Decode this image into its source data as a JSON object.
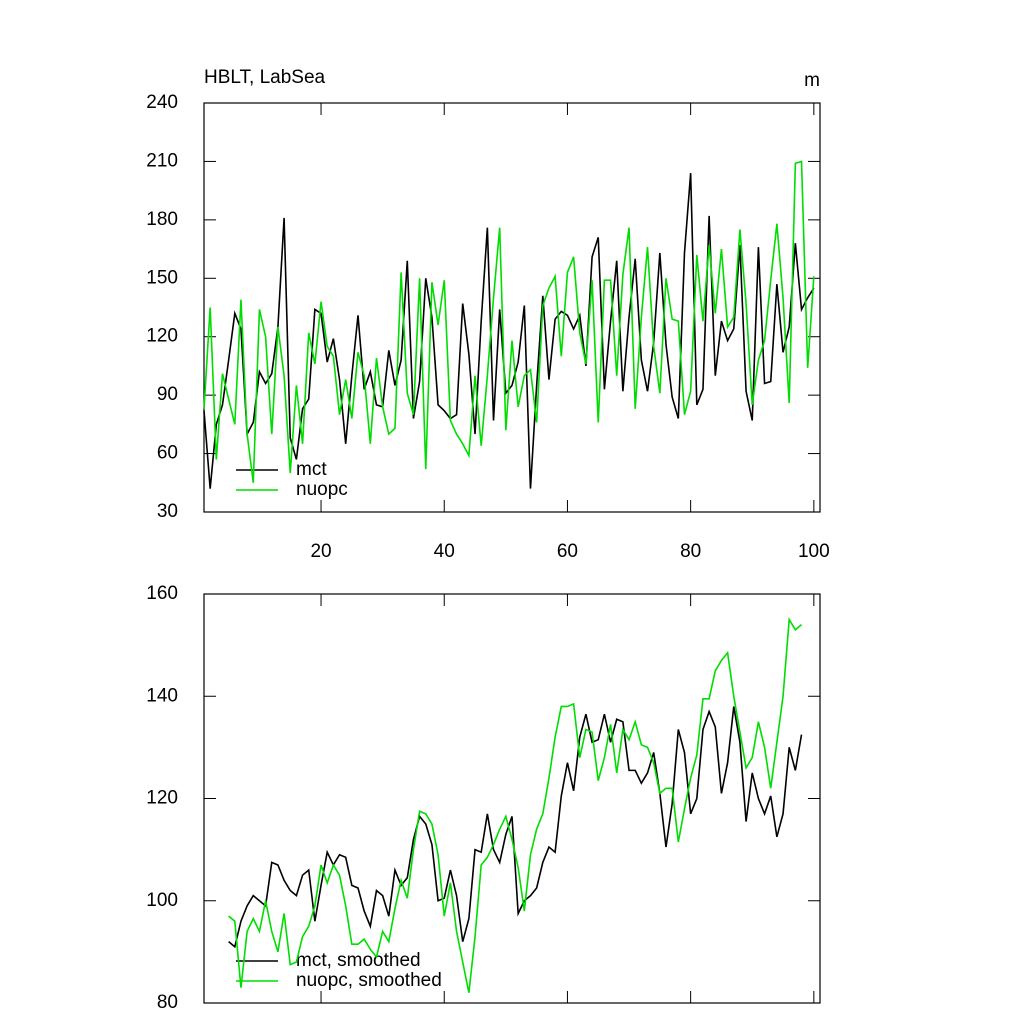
{
  "chart_data": [
    {
      "type": "line",
      "title": "HBLT, LabSea",
      "units": "m",
      "x": [
        1,
        2,
        3,
        4,
        5,
        6,
        7,
        8,
        9,
        10,
        11,
        12,
        13,
        14,
        15,
        16,
        17,
        18,
        19,
        20,
        21,
        22,
        23,
        24,
        25,
        26,
        27,
        28,
        29,
        30,
        31,
        32,
        33,
        34,
        35,
        36,
        37,
        38,
        39,
        40,
        41,
        42,
        43,
        44,
        45,
        46,
        47,
        48,
        49,
        50,
        51,
        52,
        53,
        54,
        55,
        56,
        57,
        58,
        59,
        60,
        61,
        62,
        63,
        64,
        65,
        66,
        67,
        68,
        69,
        70,
        71,
        72,
        73,
        74,
        75,
        76,
        77,
        78,
        79,
        80,
        81,
        82,
        83,
        84,
        85,
        86,
        87,
        88,
        89,
        90,
        91,
        92,
        93,
        94,
        95,
        96,
        97,
        98,
        99,
        100
      ],
      "series": [
        {
          "name": "mct",
          "color": "#000000",
          "values": [
            82,
            42,
            75,
            85,
            108,
            132,
            124,
            70,
            76,
            102,
            96,
            101,
            125,
            181,
            68,
            57,
            83,
            88,
            134,
            132,
            107,
            119,
            98,
            65,
            100,
            131,
            93,
            102,
            85,
            84,
            113,
            95,
            108,
            159,
            78,
            97,
            150,
            130,
            85,
            82,
            78,
            80,
            137,
            111,
            70,
            128,
            176,
            77,
            134,
            91,
            95,
            107,
            136,
            42,
            95,
            141,
            98,
            129,
            133,
            131,
            124,
            131,
            105,
            161,
            171,
            93,
            128,
            159,
            92,
            130,
            160,
            108,
            92,
            117,
            163,
            116,
            89,
            78,
            163,
            204,
            85,
            93,
            182,
            100,
            128,
            118,
            124,
            167,
            92,
            77,
            166,
            96,
            97,
            147,
            112,
            125,
            168,
            134,
            140,
            145
          ]
        },
        {
          "name": "nuopc",
          "color": "#00dd00",
          "values": [
            83,
            135,
            57,
            101,
            88,
            75,
            139,
            70,
            45,
            134,
            120,
            70,
            125,
            100,
            50,
            95,
            65,
            122,
            106,
            138,
            115,
            110,
            80,
            98,
            78,
            112,
            100,
            65,
            109,
            84,
            70,
            73,
            153,
            91,
            80,
            150,
            52,
            148,
            126,
            149,
            77,
            70,
            65,
            59,
            100,
            64,
            100,
            140,
            176,
            72,
            118,
            84,
            100,
            103,
            76,
            136,
            145,
            151,
            110,
            153,
            161,
            122,
            106,
            149,
            76,
            149,
            149,
            100,
            152,
            176,
            83,
            130,
            166,
            115,
            91,
            150,
            129,
            128,
            80,
            92,
            162,
            128,
            167,
            132,
            165,
            125,
            130,
            175,
            137,
            85,
            108,
            118,
            149,
            178,
            140,
            86,
            209,
            210,
            104,
            151
          ]
        }
      ],
      "xlim": [
        1,
        101
      ],
      "xticks": [
        20,
        40,
        60,
        80,
        100
      ],
      "xtick_labels": true,
      "ylim": [
        30,
        240
      ],
      "yticks": [
        30,
        60,
        90,
        120,
        150,
        180,
        210,
        240
      ],
      "legend": "lower-left"
    },
    {
      "type": "line",
      "x": [
        5,
        6,
        7,
        8,
        9,
        10,
        11,
        12,
        13,
        14,
        15,
        16,
        17,
        18,
        19,
        20,
        21,
        22,
        23,
        24,
        25,
        26,
        27,
        28,
        29,
        30,
        31,
        32,
        33,
        34,
        35,
        36,
        37,
        38,
        39,
        40,
        41,
        42,
        43,
        44,
        45,
        46,
        47,
        48,
        49,
        50,
        51,
        52,
        53,
        54,
        55,
        56,
        57,
        58,
        59,
        60,
        61,
        62,
        63,
        64,
        65,
        66,
        67,
        68,
        69,
        70,
        71,
        72,
        73,
        74,
        75,
        76,
        77,
        78,
        79,
        80,
        81,
        82,
        83,
        84,
        85,
        86,
        87,
        88,
        89,
        90,
        91,
        92,
        93,
        94,
        95,
        96,
        97,
        98
      ],
      "series": [
        {
          "name": "mct, smoothed",
          "color": "#000000",
          "values": [
            92,
            91,
            96,
            99,
            101,
            100,
            99,
            107.5,
            107,
            104,
            102,
            101,
            105,
            106,
            96,
            103,
            109.5,
            107,
            109,
            108.5,
            103,
            102.5,
            98,
            95,
            102,
            101,
            97,
            106,
            103,
            104.5,
            112,
            116.5,
            115,
            111,
            100,
            100.5,
            106,
            101,
            92,
            96.5,
            110,
            109.5,
            117,
            110,
            107.5,
            113,
            116.5,
            97.5,
            100,
            101,
            102.5,
            107.5,
            110.5,
            109.5,
            120.5,
            127,
            121.5,
            132,
            136.5,
            131,
            131.5,
            136.5,
            131,
            135.5,
            135,
            125.5,
            125.5,
            123,
            125,
            129,
            121,
            110.5,
            119,
            133.5,
            129,
            117,
            120,
            133.5,
            137,
            134,
            121,
            127,
            138,
            131,
            115.5,
            125,
            120,
            117,
            120.5,
            112.5,
            117,
            130,
            125.5,
            132.5
          ]
        },
        {
          "name": "nuopc, smoothed",
          "color": "#00dd00",
          "values": [
            97,
            96,
            83,
            94,
            96.5,
            94,
            100,
            94,
            90,
            97.5,
            87.5,
            88,
            93,
            95,
            99,
            107,
            103.5,
            107,
            105,
            99,
            91.5,
            91.5,
            92.5,
            90.5,
            89,
            94,
            92,
            98.5,
            104,
            100.5,
            110,
            117.5,
            117,
            115,
            109,
            97,
            103.5,
            94,
            88,
            82,
            93,
            107,
            108.5,
            111,
            114,
            116.5,
            112,
            106.5,
            98,
            109,
            114,
            117,
            124,
            132,
            138,
            138,
            138.5,
            128,
            133.5,
            133,
            123.5,
            128,
            134.5,
            125,
            133.5,
            131.5,
            135,
            130.5,
            130,
            127,
            121,
            122,
            122,
            111.5,
            118,
            124,
            128.5,
            139.5,
            139.5,
            145,
            147,
            148.5,
            140,
            133,
            126,
            128,
            135,
            130,
            122,
            131,
            140,
            155,
            153,
            154
          ]
        }
      ],
      "xlim": [
        1,
        101
      ],
      "xticks": [
        20,
        40,
        60,
        80,
        100
      ],
      "xtick_labels": false,
      "ylim": [
        80,
        160
      ],
      "yticks": [
        80,
        100,
        120,
        140,
        160
      ],
      "legend": "lower-left"
    }
  ]
}
